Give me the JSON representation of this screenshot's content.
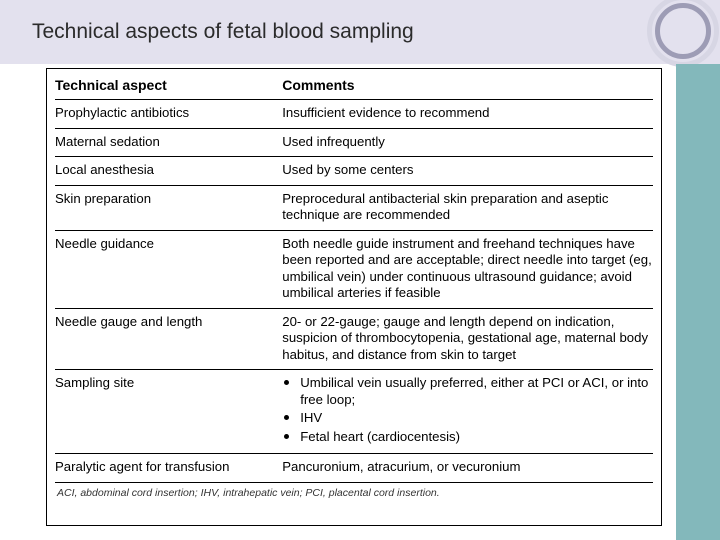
{
  "header": {
    "title": "Technical aspects of fetal blood sampling"
  },
  "colors": {
    "header_bg": "#e3e1ee",
    "sidebar_bg": "#83b8bb",
    "ring_outer": "#d7d6e4",
    "ring_inner": "#9d9cb5",
    "text": "#000000",
    "background": "#ffffff"
  },
  "table": {
    "headers": {
      "aspect": "Technical aspect",
      "comments": "Comments"
    },
    "rows": [
      {
        "aspect": "Prophylactic antibiotics",
        "comment": "Insufficient evidence to recommend"
      },
      {
        "aspect": "Maternal sedation",
        "comment": "Used infrequently"
      },
      {
        "aspect": "Local anesthesia",
        "comment": "Used by some centers"
      },
      {
        "aspect": "Skin preparation",
        "comment": "Preprocedural antibacterial skin preparation and aseptic technique are recommended"
      },
      {
        "aspect": "Needle guidance",
        "comment": "Both needle guide instrument and freehand techniques have been reported and are acceptable; direct needle into target (eg, umbilical vein) under continuous ultrasound guidance; avoid umbilical arteries if feasible"
      },
      {
        "aspect": "Needle gauge and length",
        "comment": "20- or 22-gauge; gauge and length depend on indication, suspicion of thrombocytopenia, gestational age, maternal body habitus, and distance from skin to target"
      },
      {
        "aspect": "Sampling site",
        "bullets": [
          "Umbilical vein usually preferred, either at PCI or ACI, or into free loop;",
          "IHV",
          "Fetal heart (cardiocentesis)"
        ]
      },
      {
        "aspect": "Paralytic agent for transfusion",
        "comment": "Pancuronium, atracurium, or vecuronium"
      }
    ],
    "footnote": "ACI, abdominal cord insertion; IHV, intrahepatic vein; PCI, placental cord insertion."
  }
}
